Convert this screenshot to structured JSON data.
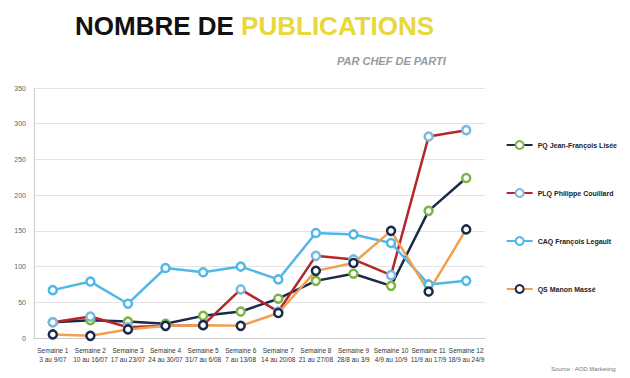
{
  "chart_data": {
    "type": "line",
    "title": "NOMBRE DE PUBLICATIONS",
    "subtitle": "PAR CHEF DE PARTI",
    "annotations": [
      "Source : AOD Marketing"
    ],
    "categories": [
      "Semaine 1\n3 au 9/07",
      "Semaine 2\n10 au 16/07",
      "Semaine 3\n17 au 23/07",
      "Semaine 4\n24 au 30/07",
      "Semaine 5\n31/7 au 6/08",
      "Semaine 6\n7 au 13/08",
      "Semaine 7\n14 au 20/08",
      "Semaine 8\n21 au 27/08",
      "Semaine 9\n28/8 au 3/9",
      "Semaine 10\n4/9 au 10/9",
      "Semaine 11\n11/9 au 17/9",
      "Semaine 12\n18/9 au 24/9"
    ],
    "series": [
      {
        "name": "PQ Jean-François Lisée",
        "color": "#1b2a4a",
        "marker": "circle",
        "values": [
          22,
          25,
          23,
          20,
          31,
          37,
          55,
          80,
          90,
          73,
          178,
          224
        ]
      },
      {
        "name": "PLQ Philippe Couillard",
        "color": "#b5262c",
        "marker": "circle",
        "values": [
          22,
          30,
          15,
          17,
          18,
          68,
          37,
          115,
          110,
          88,
          282,
          291
        ]
      },
      {
        "name": "CAQ François Legault",
        "color": "#4fb8e8",
        "marker": "circle",
        "values": [
          67,
          79,
          48,
          98,
          92,
          100,
          82,
          147,
          145,
          133,
          75,
          80
        ]
      },
      {
        "name": "QS Manon Massé",
        "color": "#f0a050",
        "marker": "circle",
        "values": [
          5,
          3,
          12,
          17,
          18,
          17,
          35,
          94,
          105,
          150,
          65,
          152
        ]
      }
    ],
    "ylim": [
      0,
      350
    ],
    "yticks": [
      0,
      50,
      100,
      150,
      200,
      250,
      300,
      350
    ],
    "grid": true,
    "legend": "right"
  }
}
